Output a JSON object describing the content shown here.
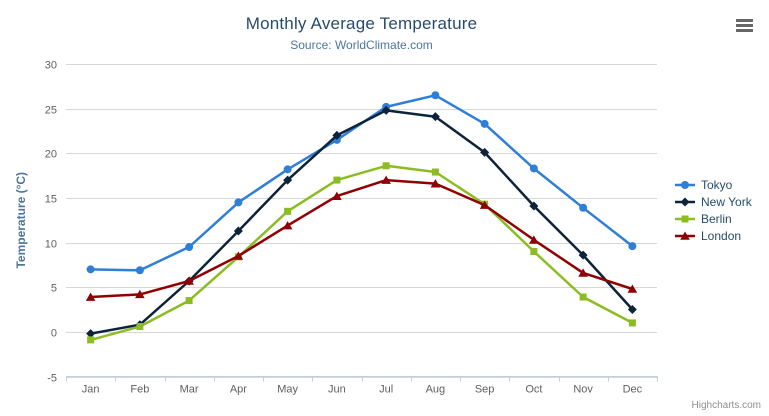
{
  "header": {
    "title": "Monthly Average Temperature",
    "subtitle": "Source: WorldClimate.com",
    "menu_icon": "hamburger-icon"
  },
  "credit_label": "Highcharts.com",
  "chart_data": {
    "type": "line",
    "title": "Monthly Average Temperature",
    "subtitle": "Source: WorldClimate.com",
    "categories": [
      "Jan",
      "Feb",
      "Mar",
      "Apr",
      "May",
      "Jun",
      "Jul",
      "Aug",
      "Sep",
      "Oct",
      "Nov",
      "Dec"
    ],
    "series": [
      {
        "name": "Tokyo",
        "color": "#2f7ed8",
        "marker": "circle",
        "values": [
          7.0,
          6.9,
          9.5,
          14.5,
          18.2,
          21.5,
          25.2,
          26.5,
          23.3,
          18.3,
          13.9,
          9.6
        ]
      },
      {
        "name": "New York",
        "color": "#0d233a",
        "marker": "diamond",
        "values": [
          -0.2,
          0.8,
          5.7,
          11.3,
          17.0,
          22.0,
          24.8,
          24.1,
          20.1,
          14.1,
          8.6,
          2.5
        ]
      },
      {
        "name": "Berlin",
        "color": "#8bbc21",
        "marker": "square",
        "values": [
          -0.9,
          0.6,
          3.5,
          8.4,
          13.5,
          17.0,
          18.6,
          17.9,
          14.3,
          9.0,
          3.9,
          1.0
        ]
      },
      {
        "name": "London",
        "color": "#910000",
        "marker": "triangle",
        "values": [
          3.9,
          4.2,
          5.7,
          8.5,
          11.9,
          15.2,
          17.0,
          16.6,
          14.2,
          10.3,
          6.6,
          4.8
        ]
      }
    ],
    "xlabel": "",
    "ylabel": "Temperature (°C)",
    "ylim": [
      -5,
      30
    ],
    "y_ticks": [
      30,
      25,
      20,
      15,
      10,
      5,
      0,
      -5
    ],
    "grid": true,
    "legend_position": "right",
    "colors": {
      "grid_line": "#d8d8d8",
      "axis_line": "#c0d0e0",
      "axis_label": "#606060",
      "axis_title": "#4d759e",
      "title_text": "#274b6d",
      "subtitle_text": "#4d759e",
      "legend_text": "#274b6d"
    }
  }
}
